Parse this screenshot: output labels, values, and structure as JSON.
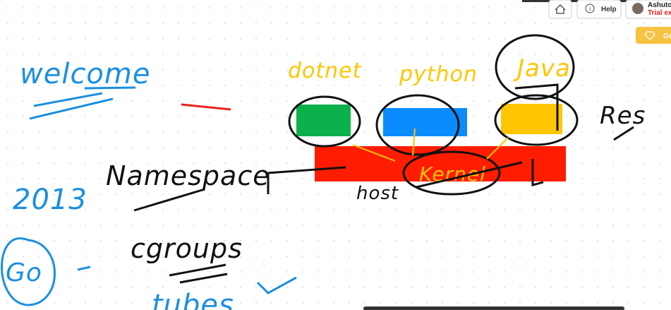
{
  "toolbar": {
    "help": "Help",
    "user_name": "Ashuto",
    "trial_notice": "Trial expir",
    "upgrade_button": "Go"
  },
  "whiteboard": {
    "notes": [
      "welcome",
      "2013",
      "Go",
      "Namespace",
      "cgroups",
      "tubes",
      "Res",
      "host"
    ],
    "stack_labels": [
      "dotnet",
      "python",
      "Java"
    ],
    "kernel_label": "Kernel"
  }
}
